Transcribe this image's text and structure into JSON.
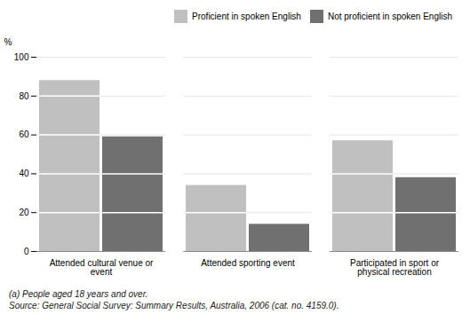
{
  "chart_data": {
    "type": "bar",
    "categories": [
      "Attended cultural venue or event",
      "Attended sporting event",
      "Participated in sport or physical recreation"
    ],
    "series": [
      {
        "name": "Proficient in spoken English",
        "color": "#c0c0c0",
        "values": [
          88,
          34,
          57
        ]
      },
      {
        "name": "Not proficient in spoken English",
        "color": "#707070",
        "values": [
          59,
          14,
          38
        ]
      }
    ],
    "ylabel": "%",
    "ylim": [
      0,
      100
    ],
    "yticks": [
      0,
      20,
      40,
      60,
      80,
      100
    ],
    "grid": true,
    "legend": "upper right",
    "footnotes": [
      "(a) People aged 18 years and over.",
      "Source: General Social Survey: Summary Results, Australia, 2006 (cat. no. 4159.0)."
    ]
  }
}
